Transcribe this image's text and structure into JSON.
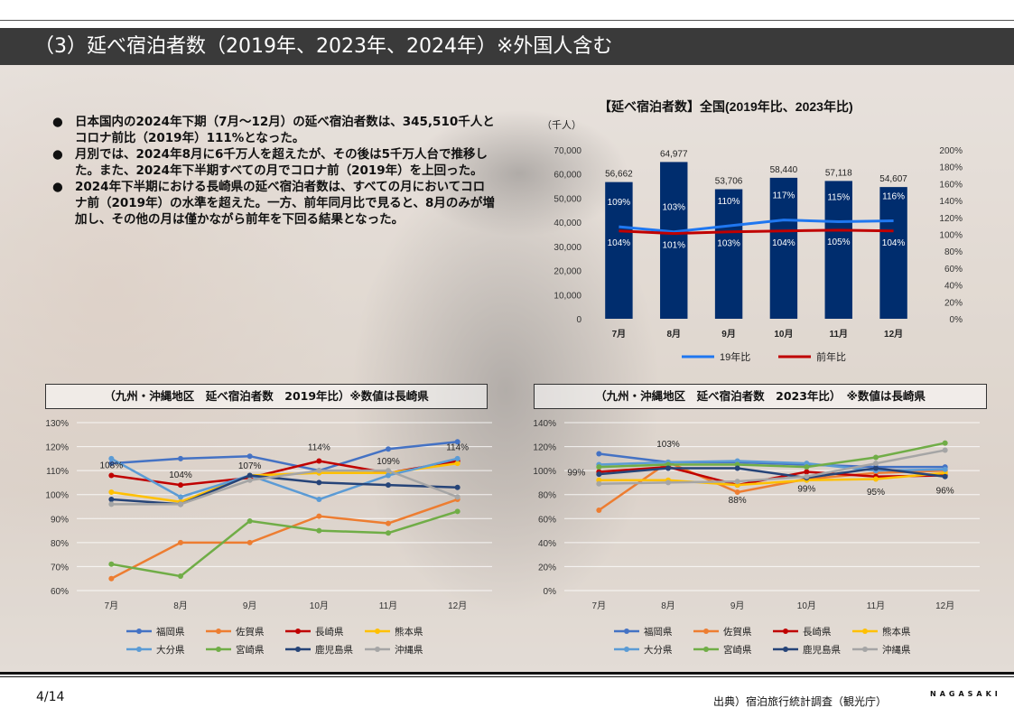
{
  "header": {
    "title": "（3）延べ宿泊者数（2019年、2023年、2024年）※外国人含む"
  },
  "bullets": [
    "日本国内の2024年下期（7月～12月）の延べ宿泊者数は、345,510千人とコロナ前比（2019年）111%となった。",
    "月別では、2024年8月に6千万人を超えたが、その後は5千万人台で推移した。また、2024年下半期すべての月でコロナ前（2019年）を上回った。",
    "2024年下半期における長崎県の延べ宿泊者数は、すべての月においてコロナ前（2019年）の水準を超えた。一方、前年同月比で見ると、8月のみが増加し、その他の月は僅かながら前年を下回る結果となった。"
  ],
  "bullet_marker": "●",
  "chart_data": [
    {
      "type": "bar",
      "title": "【延べ宿泊者数】全国(2019年比、2023年比)",
      "unit_label": "（千人）",
      "categories": [
        "7月",
        "8月",
        "9月",
        "10月",
        "11月",
        "12月"
      ],
      "bar_values": [
        56662,
        64977,
        53706,
        58440,
        57118,
        54607
      ],
      "bar_labels": [
        "56,662",
        "64,977",
        "53,706",
        "58,440",
        "57,118",
        "54,607"
      ],
      "ylim": [
        0,
        70000
      ],
      "y_ticks": [
        "0",
        "10,000",
        "20,000",
        "30,000",
        "40,000",
        "50,000",
        "60,000",
        "70,000"
      ],
      "y2lim": [
        0,
        200
      ],
      "y2_ticks": [
        "0%",
        "20%",
        "40%",
        "60%",
        "80%",
        "100%",
        "120%",
        "140%",
        "160%",
        "180%",
        "200%"
      ],
      "series": [
        {
          "name": "19年比",
          "values": [
            109,
            103,
            110,
            117,
            115,
            116
          ],
          "labels": [
            "109%",
            "103%",
            "110%",
            "117%",
            "115%",
            "116%"
          ],
          "color": "#1f77f0"
        },
        {
          "name": "前年比",
          "values": [
            104,
            101,
            103,
            104,
            105,
            104
          ],
          "labels": [
            "104%",
            "101%",
            "103%",
            "104%",
            "105%",
            "104%"
          ],
          "color": "#c00000"
        }
      ],
      "bar_color": "#002d6e"
    },
    {
      "type": "line",
      "title": "（九州・沖縄地区　延べ宿泊者数　2019年比）※数値は長崎県",
      "categories": [
        "7月",
        "8月",
        "9月",
        "10月",
        "11月",
        "12月"
      ],
      "ylim": [
        60,
        130
      ],
      "y_ticks": [
        "60%",
        "70%",
        "80%",
        "90%",
        "100%",
        "110%",
        "120%",
        "130%"
      ],
      "series": [
        {
          "name": "福岡県",
          "values": [
            113,
            115,
            116,
            110,
            119,
            122
          ],
          "color": "#4472c4"
        },
        {
          "name": "佐賀県",
          "values": [
            65,
            80,
            80,
            91,
            88,
            98
          ],
          "color": "#ed7d31"
        },
        {
          "name": "長崎県",
          "values": [
            108,
            104,
            107,
            114,
            109,
            114
          ],
          "labels": [
            "108%",
            "104%",
            "107%",
            "114%",
            "109%",
            "114%"
          ],
          "color": "#c00000"
        },
        {
          "name": "熊本県",
          "values": [
            101,
            97,
            108,
            109,
            109,
            113
          ],
          "color": "#ffc000"
        },
        {
          "name": "大分県",
          "values": [
            115,
            99,
            108,
            98,
            108,
            115
          ],
          "color": "#5b9bd5"
        },
        {
          "name": "宮崎県",
          "values": [
            71,
            66,
            89,
            85,
            84,
            93
          ],
          "color": "#70ad47"
        },
        {
          "name": "鹿児島県",
          "values": [
            98,
            96,
            108,
            105,
            104,
            103
          ],
          "color": "#264478"
        },
        {
          "name": "沖縄県",
          "values": [
            96,
            96,
            106,
            110,
            110,
            99
          ],
          "color": "#a5a5a5"
        }
      ]
    },
    {
      "type": "line",
      "title": "（九州・沖縄地区　延べ宿泊者数　2023年比）　※数値は長崎県",
      "categories": [
        "7月",
        "8月",
        "9月",
        "10月",
        "11月",
        "12月"
      ],
      "ylim": [
        0,
        140
      ],
      "y_ticks": [
        "0%",
        "20%",
        "40%",
        "60%",
        "80%",
        "100%",
        "120%",
        "140%"
      ],
      "series": [
        {
          "name": "福岡県",
          "values": [
            114,
            107,
            107,
            105,
            103,
            103
          ],
          "color": "#4472c4"
        },
        {
          "name": "佐賀県",
          "values": [
            67,
            107,
            82,
            93,
            98,
            100
          ],
          "color": "#ed7d31"
        },
        {
          "name": "長崎県",
          "values": [
            99,
            103,
            88,
            99,
            95,
            96
          ],
          "labels": [
            "99%",
            "103%",
            "88%",
            "99%",
            "95%",
            "96%"
          ],
          "color": "#c00000"
        },
        {
          "name": "熊本県",
          "values": [
            92,
            92,
            88,
            92,
            93,
            98
          ],
          "color": "#ffc000"
        },
        {
          "name": "大分県",
          "values": [
            105,
            107,
            108,
            106,
            100,
            101
          ],
          "color": "#5b9bd5"
        },
        {
          "name": "宮崎県",
          "values": [
            103,
            105,
            105,
            103,
            111,
            123
          ],
          "color": "#70ad47"
        },
        {
          "name": "鹿児島県",
          "values": [
            97,
            102,
            102,
            94,
            102,
            95
          ],
          "color": "#264478"
        },
        {
          "name": "沖縄県",
          "values": [
            89,
            90,
            91,
            95,
            106,
            117
          ],
          "color": "#a5a5a5"
        }
      ]
    }
  ],
  "footer": {
    "page": "4/14",
    "source": "出典）宿泊旅行統計調査（観光庁）",
    "logo": "NAGASAKI"
  }
}
